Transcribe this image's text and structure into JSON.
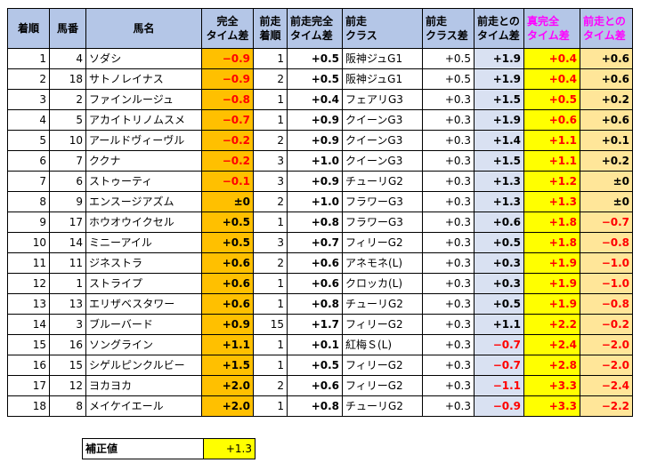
{
  "headers": [
    {
      "line1": "着順",
      "line2": "",
      "color": ""
    },
    {
      "line1": "馬番",
      "line2": "",
      "color": ""
    },
    {
      "line1": "馬名",
      "line2": "",
      "color": ""
    },
    {
      "line1": "完全",
      "line2": "タイム差",
      "color": ""
    },
    {
      "line1": "前走",
      "line2": "着順",
      "color": ""
    },
    {
      "line1": "前走完全",
      "line2": "タイム差",
      "color": ""
    },
    {
      "line1": "前走",
      "line2": "クラス",
      "color": ""
    },
    {
      "line1": "前走",
      "line2": "クラス差",
      "color": ""
    },
    {
      "line1": "前走との",
      "line2": "タイム差",
      "color": ""
    },
    {
      "line1": "真完全",
      "line2": "タイム差",
      "color": "#ff00ff"
    },
    {
      "line1": "前走との",
      "line2": "タイム差",
      "color": "#ff00ff"
    }
  ],
  "rows": [
    {
      "finish": "1",
      "horse_no": "4",
      "name": "ソダシ",
      "complete": "−0.9",
      "prev_finish": "1",
      "prev_complete": "+0.5",
      "prev_class": "阪神ジュG1",
      "class_diff": "+0.5",
      "vs_prev": "+1.9",
      "true_complete": "+0.4",
      "vs_prev2": "+0.6"
    },
    {
      "finish": "2",
      "horse_no": "18",
      "name": "サトノレイナス",
      "complete": "−0.9",
      "prev_finish": "2",
      "prev_complete": "+0.5",
      "prev_class": "阪神ジュG1",
      "class_diff": "+0.5",
      "vs_prev": "+1.9",
      "true_complete": "+0.4",
      "vs_prev2": "+0.6"
    },
    {
      "finish": "3",
      "horse_no": "2",
      "name": "ファインルージュ",
      "complete": "−0.8",
      "prev_finish": "1",
      "prev_complete": "+0.4",
      "prev_class": "フェアリG3",
      "class_diff": "+0.3",
      "vs_prev": "+1.5",
      "true_complete": "+0.5",
      "vs_prev2": "+0.2"
    },
    {
      "finish": "4",
      "horse_no": "5",
      "name": "アカイトリノムスメ",
      "complete": "−0.7",
      "prev_finish": "1",
      "prev_complete": "+0.9",
      "prev_class": "クイーンG3",
      "class_diff": "+0.3",
      "vs_prev": "+1.9",
      "true_complete": "+0.6",
      "vs_prev2": "+0.6"
    },
    {
      "finish": "5",
      "horse_no": "10",
      "name": "アールドヴィーヴル",
      "complete": "−0.2",
      "prev_finish": "2",
      "prev_complete": "+0.9",
      "prev_class": "クイーンG3",
      "class_diff": "+0.3",
      "vs_prev": "+1.4",
      "true_complete": "+1.1",
      "vs_prev2": "+0.1"
    },
    {
      "finish": "6",
      "horse_no": "7",
      "name": "ククナ",
      "complete": "−0.2",
      "prev_finish": "3",
      "prev_complete": "+1.0",
      "prev_class": "クイーンG3",
      "class_diff": "+0.3",
      "vs_prev": "+1.5",
      "true_complete": "+1.1",
      "vs_prev2": "+0.2"
    },
    {
      "finish": "7",
      "horse_no": "6",
      "name": "ストゥーティ",
      "complete": "−0.1",
      "prev_finish": "3",
      "prev_complete": "+0.9",
      "prev_class": "チューリG2",
      "class_diff": "+0.3",
      "vs_prev": "+1.3",
      "true_complete": "+1.2",
      "vs_prev2": "±0"
    },
    {
      "finish": "8",
      "horse_no": "9",
      "name": "エンスージアズム",
      "complete": "±0",
      "prev_finish": "2",
      "prev_complete": "+1.0",
      "prev_class": "フラワーG3",
      "class_diff": "+0.3",
      "vs_prev": "+1.3",
      "true_complete": "+1.3",
      "vs_prev2": "±0"
    },
    {
      "finish": "9",
      "horse_no": "17",
      "name": "ホウオウイクセル",
      "complete": "+0.5",
      "prev_finish": "1",
      "prev_complete": "+0.8",
      "prev_class": "フラワーG3",
      "class_diff": "+0.3",
      "vs_prev": "+0.6",
      "true_complete": "+1.8",
      "vs_prev2": "−0.7"
    },
    {
      "finish": "10",
      "horse_no": "14",
      "name": "ミニーアイル",
      "complete": "+0.5",
      "prev_finish": "3",
      "prev_complete": "+0.7",
      "prev_class": "フィリーG2",
      "class_diff": "+0.3",
      "vs_prev": "+0.5",
      "true_complete": "+1.8",
      "vs_prev2": "−0.8"
    },
    {
      "finish": "11",
      "horse_no": "11",
      "name": "ジネストラ",
      "complete": "+0.6",
      "prev_finish": "2",
      "prev_complete": "+0.6",
      "prev_class": "アネモネ(L)",
      "class_diff": "+0.3",
      "vs_prev": "+0.3",
      "true_complete": "+1.9",
      "vs_prev2": "−1.0"
    },
    {
      "finish": "12",
      "horse_no": "1",
      "name": "ストライプ",
      "complete": "+0.6",
      "prev_finish": "1",
      "prev_complete": "+0.6",
      "prev_class": "クロッカ(L)",
      "class_diff": "+0.3",
      "vs_prev": "+0.3",
      "true_complete": "+1.9",
      "vs_prev2": "−1.0"
    },
    {
      "finish": "13",
      "horse_no": "13",
      "name": "エリザベスタワー",
      "complete": "+0.6",
      "prev_finish": "1",
      "prev_complete": "+0.8",
      "prev_class": "チューリG2",
      "class_diff": "+0.3",
      "vs_prev": "+0.5",
      "true_complete": "+1.9",
      "vs_prev2": "−0.8"
    },
    {
      "finish": "14",
      "horse_no": "3",
      "name": "ブルーバード",
      "complete": "+0.9",
      "prev_finish": "15",
      "prev_complete": "+1.7",
      "prev_class": "フィリーG2",
      "class_diff": "+0.3",
      "vs_prev": "+1.1",
      "true_complete": "+2.2",
      "vs_prev2": "−0.2"
    },
    {
      "finish": "15",
      "horse_no": "16",
      "name": "ソングライン",
      "complete": "+1.1",
      "prev_finish": "1",
      "prev_complete": "+0.1",
      "prev_class": "紅梅Ｓ(L)",
      "class_diff": "+0.3",
      "vs_prev": "−0.7",
      "true_complete": "+2.4",
      "vs_prev2": "−2.0"
    },
    {
      "finish": "16",
      "horse_no": "15",
      "name": "シゲルピンクルビー",
      "complete": "+1.5",
      "prev_finish": "1",
      "prev_complete": "+0.5",
      "prev_class": "フィリーG2",
      "class_diff": "+0.3",
      "vs_prev": "−0.7",
      "true_complete": "+2.8",
      "vs_prev2": "−2.0"
    },
    {
      "finish": "17",
      "horse_no": "12",
      "name": "ヨカヨカ",
      "complete": "+2.0",
      "prev_finish": "2",
      "prev_complete": "+0.6",
      "prev_class": "フィリーG2",
      "class_diff": "+0.3",
      "vs_prev": "−1.1",
      "true_complete": "+3.3",
      "vs_prev2": "−2.4"
    },
    {
      "finish": "18",
      "horse_no": "8",
      "name": "メイケイエール",
      "complete": "+2.0",
      "prev_finish": "1",
      "prev_complete": "+0.8",
      "prev_class": "チューリG2",
      "class_diff": "+0.3",
      "vs_prev": "−0.9",
      "true_complete": "+3.3",
      "vs_prev2": "−2.2"
    }
  ],
  "correction": {
    "label": "補正値",
    "value": "+1.3"
  },
  "colors": {
    "header_bg": "#b4c6e7",
    "complete_bg": "#ffc000",
    "vs_prev_bg": "#d9e1f2",
    "true_bg": "#ffff00",
    "vs_prev2_bg": "#ffe699",
    "negative": "#ff0000",
    "magenta": "#ff00ff"
  }
}
